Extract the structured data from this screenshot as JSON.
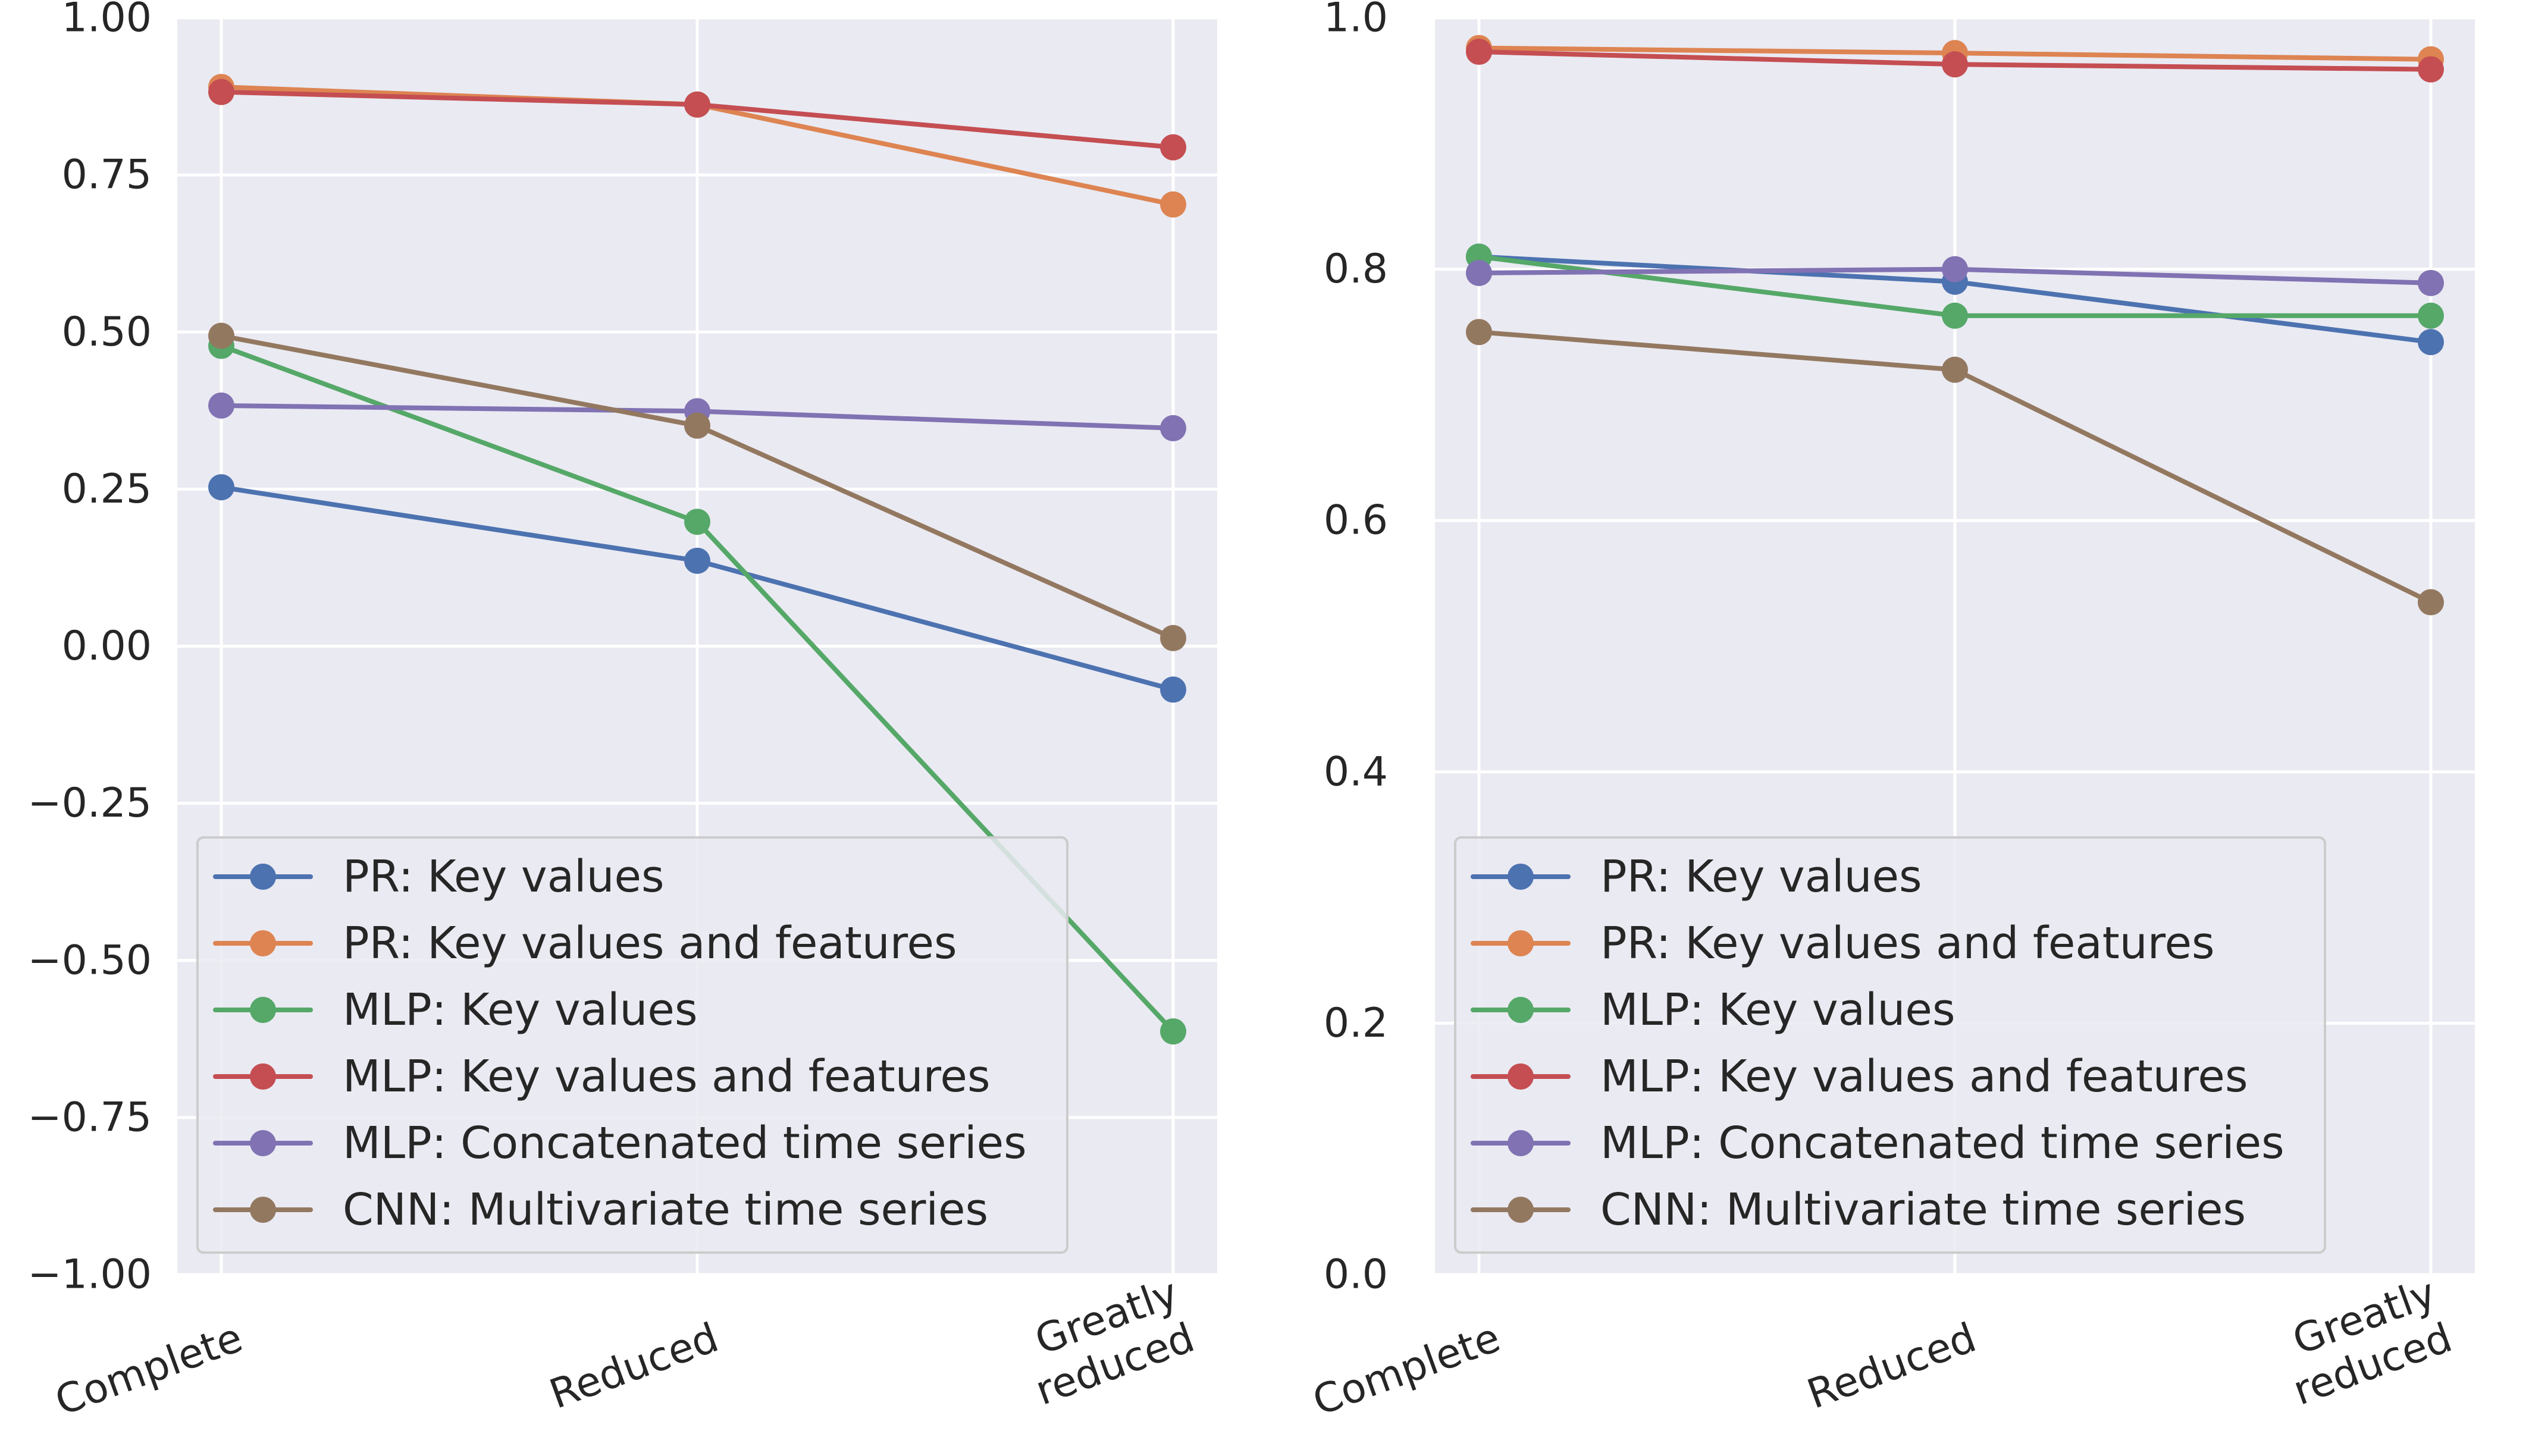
{
  "chart_data": [
    {
      "type": "line",
      "categories": [
        "Complete",
        "Reduced",
        "Greatly\nreduced"
      ],
      "ylim": [
        -1.0,
        1.0
      ],
      "yticks": [
        -1.0,
        -0.75,
        -0.5,
        -0.25,
        0.0,
        0.25,
        0.5,
        0.75,
        1.0
      ],
      "ytick_labels": [
        "−1.00",
        "−0.75",
        "−0.50",
        "−0.25",
        "0.00",
        "0.25",
        "0.50",
        "0.75",
        "1.00"
      ],
      "grid": true,
      "legend_position": "lower-left",
      "series": [
        {
          "name": "PR: Key values",
          "color": "#4c72b0",
          "values": [
            0.253,
            0.136,
            -0.069
          ]
        },
        {
          "name": "PR: Key values and features",
          "color": "#dd8452",
          "values": [
            0.89,
            0.862,
            0.703
          ]
        },
        {
          "name": "MLP: Key values",
          "color": "#55a868",
          "values": [
            0.478,
            0.198,
            -0.613
          ]
        },
        {
          "name": "MLP: Key values and features",
          "color": "#c44e52",
          "values": [
            0.882,
            0.862,
            0.794
          ]
        },
        {
          "name": "MLP: Concatenated time series",
          "color": "#8172b3",
          "values": [
            0.383,
            0.374,
            0.347
          ]
        },
        {
          "name": "CNN: Multivariate time series",
          "color": "#937860",
          "values": [
            0.494,
            0.351,
            0.013
          ]
        }
      ]
    },
    {
      "type": "line",
      "categories": [
        "Complete",
        "Reduced",
        "Greatly\nreduced"
      ],
      "ylim": [
        0.0,
        1.0
      ],
      "yticks": [
        0.0,
        0.2,
        0.4,
        0.6,
        0.8,
        1.0
      ],
      "ytick_labels": [
        "0.0",
        "0.2",
        "0.4",
        "0.6",
        "0.8",
        "1.0"
      ],
      "grid": true,
      "legend_position": "lower-left",
      "series": [
        {
          "name": "PR: Key values",
          "color": "#4c72b0",
          "values": [
            0.81,
            0.79,
            0.742
          ]
        },
        {
          "name": "PR: Key values and features",
          "color": "#dd8452",
          "values": [
            0.976,
            0.972,
            0.967
          ]
        },
        {
          "name": "MLP: Key values",
          "color": "#55a868",
          "values": [
            0.81,
            0.763,
            0.763
          ]
        },
        {
          "name": "MLP: Key values and features",
          "color": "#c44e52",
          "values": [
            0.973,
            0.963,
            0.959
          ]
        },
        {
          "name": "MLP: Concatenated time series",
          "color": "#8172b3",
          "values": [
            0.797,
            0.8,
            0.789
          ]
        },
        {
          "name": "CNN: Multivariate time series",
          "color": "#937860",
          "values": [
            0.75,
            0.72,
            0.535
          ]
        }
      ]
    }
  ]
}
